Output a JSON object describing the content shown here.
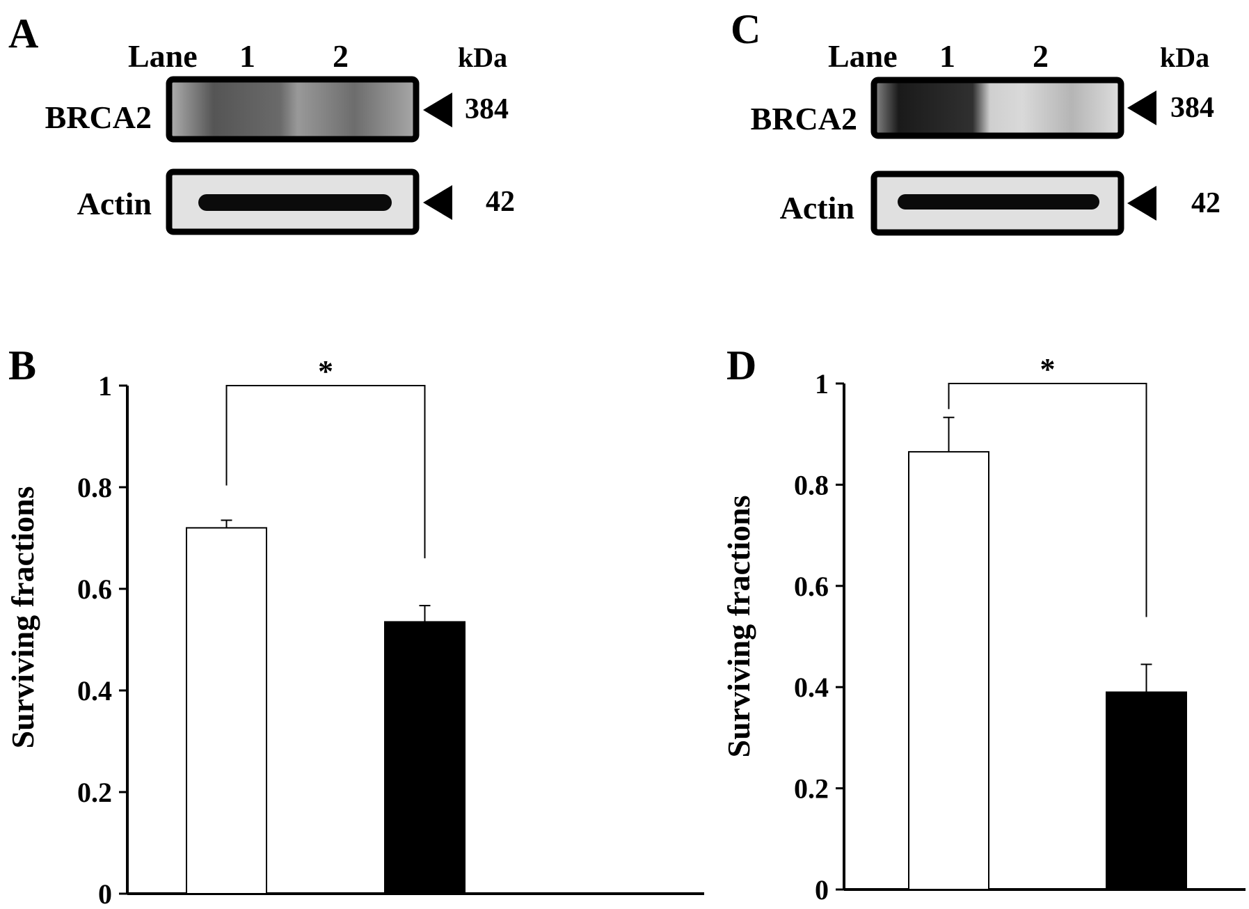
{
  "panels": {
    "A": {
      "letter": "A",
      "lane_label": "Lane",
      "lanes": [
        "1",
        "2"
      ],
      "unit_label": "kDa",
      "bands": [
        {
          "name": "BRCA2",
          "kda": "384"
        },
        {
          "name": "Actin",
          "kda": "42"
        }
      ]
    },
    "C": {
      "letter": "C",
      "lane_label": "Lane",
      "lanes": [
        "1",
        "2"
      ],
      "unit_label": "kDa",
      "bands": [
        {
          "name": "BRCA2",
          "kda": "384"
        },
        {
          "name": "Actin",
          "kda": "42"
        }
      ]
    },
    "B": {
      "letter": "B",
      "significance": "*"
    },
    "D": {
      "letter": "D",
      "significance": "*"
    }
  },
  "chart_data": [
    {
      "panel": "B",
      "type": "bar",
      "categories": [
        "",
        ""
      ],
      "series": [
        {
          "values": [
            0.72,
            0.535
          ],
          "errors": [
            0.015,
            0.032
          ]
        }
      ],
      "bar_colors": [
        "#ffffff",
        "#000000"
      ],
      "ylabel": "Surviving fractions",
      "xlabel": "",
      "ylim": [
        0,
        1
      ],
      "yticks": [
        "0",
        "0.2",
        "0.4",
        "0.6",
        "0.8",
        "1"
      ],
      "grid": false,
      "annotation": "*"
    },
    {
      "panel": "D",
      "type": "bar",
      "categories": [
        "",
        ""
      ],
      "series": [
        {
          "values": [
            0.865,
            0.39
          ],
          "errors": [
            0.068,
            0.055
          ]
        }
      ],
      "bar_colors": [
        "#ffffff",
        "#000000"
      ],
      "ylabel": "Surviving fractions",
      "xlabel": "",
      "ylim": [
        0,
        1
      ],
      "yticks": [
        "0",
        "0.2",
        "0.4",
        "0.6",
        "0.8",
        "1"
      ],
      "grid": false,
      "annotation": "*"
    }
  ]
}
